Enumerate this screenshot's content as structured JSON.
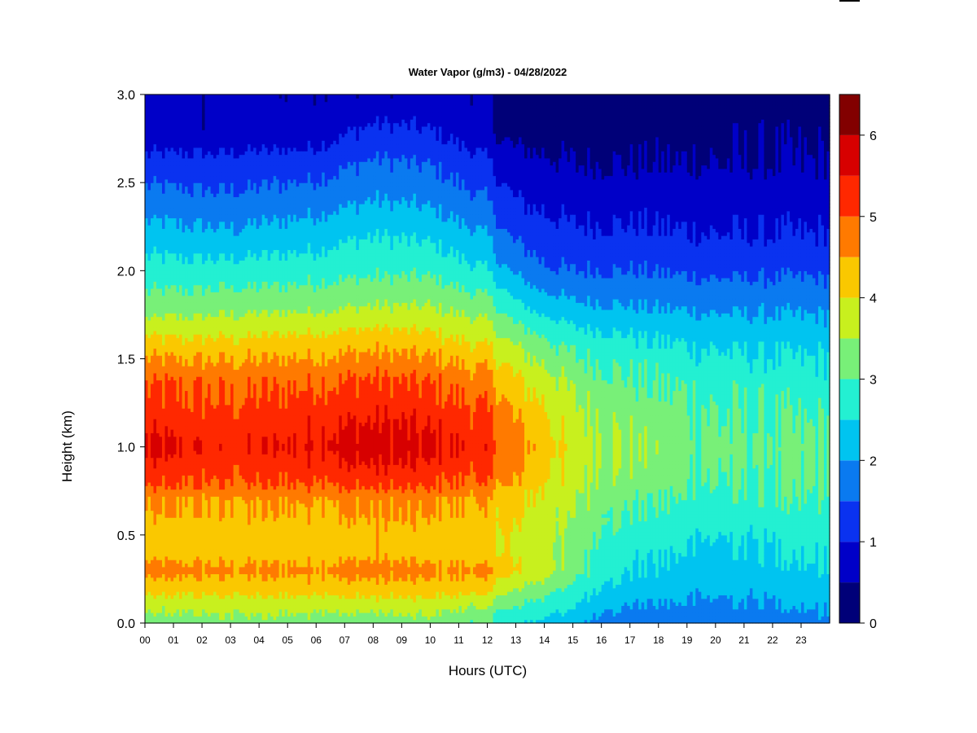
{
  "chart_data": {
    "type": "heatmap",
    "title": "Water Vapor (g/m3) - 04/28/2022",
    "xlabel": "Hours (UTC)",
    "ylabel": "Height (km)",
    "xlim": [
      0,
      24
    ],
    "ylim": [
      0,
      3
    ],
    "x_ticks": [
      "00",
      "01",
      "02",
      "03",
      "04",
      "05",
      "06",
      "07",
      "08",
      "09",
      "10",
      "11",
      "12",
      "13",
      "14",
      "15",
      "16",
      "17",
      "18",
      "19",
      "20",
      "21",
      "22",
      "23"
    ],
    "y_ticks": [
      "0.0",
      "0.5",
      "1.0",
      "1.5",
      "2.0",
      "2.5",
      "3.0"
    ],
    "colorbar": {
      "levels": [
        0,
        0.5,
        1,
        1.5,
        2,
        2.5,
        3,
        3.5,
        4,
        4.5,
        5,
        5.5,
        6,
        6.5
      ],
      "tick_labels": [
        "0",
        "1",
        "2",
        "3",
        "4",
        "5",
        "6"
      ],
      "colors": [
        "#000078",
        "#0000C8",
        "#0A32F0",
        "#0A7AF0",
        "#00C4F0",
        "#23F0D2",
        "#78F078",
        "#C8F01E",
        "#FAC800",
        "#FF7A00",
        "#FF2800",
        "#D70000",
        "#820000"
      ]
    },
    "profiles": {
      "heights_km": [
        0.0,
        0.1,
        0.2,
        0.3,
        0.4,
        0.5,
        0.7,
        0.8,
        1.0,
        1.2,
        1.4,
        1.6,
        1.8,
        2.0,
        2.2,
        2.4,
        2.6,
        2.8,
        3.0
      ],
      "hours": [
        0,
        3,
        6,
        8,
        10,
        12,
        12.5,
        13,
        14,
        15,
        17,
        20,
        23,
        24
      ],
      "values": [
        [
          3.2,
          3.6,
          4.2,
          4.7,
          4.3,
          4.3,
          4.5,
          5.1,
          5.6,
          5.2,
          4.9,
          4.1,
          3.2,
          2.7,
          2.2,
          1.7,
          1.2,
          0.6,
          0.6
        ],
        [
          3.3,
          3.7,
          4.2,
          4.6,
          4.3,
          4.3,
          4.5,
          5.0,
          5.3,
          5.1,
          4.8,
          4.1,
          3.3,
          2.7,
          2.1,
          1.6,
          1.2,
          0.6,
          0.6
        ],
        [
          3.3,
          3.7,
          4.3,
          4.6,
          4.3,
          4.3,
          4.6,
          5.1,
          5.6,
          5.3,
          4.9,
          4.2,
          3.4,
          2.8,
          2.3,
          1.8,
          1.3,
          0.7,
          0.6
        ],
        [
          3.2,
          3.7,
          4.3,
          4.7,
          4.4,
          4.4,
          4.6,
          5.2,
          5.8,
          5.4,
          5.0,
          4.3,
          3.5,
          2.9,
          2.5,
          2.0,
          1.6,
          1.1,
          0.6
        ],
        [
          3.3,
          3.7,
          4.3,
          4.6,
          4.3,
          4.3,
          4.6,
          5.1,
          5.6,
          5.3,
          4.9,
          4.2,
          3.5,
          2.9,
          2.4,
          1.9,
          1.5,
          1.0,
          0.6
        ],
        [
          3.0,
          3.5,
          4.2,
          4.6,
          4.2,
          4.2,
          4.4,
          4.9,
          5.3,
          5.0,
          4.6,
          3.9,
          3.2,
          2.5,
          2.0,
          1.5,
          1.1,
          0.6,
          0.6
        ],
        [
          2.6,
          3.1,
          3.7,
          4.2,
          4.0,
          4.0,
          4.2,
          4.6,
          5.0,
          4.7,
          4.3,
          3.6,
          2.9,
          2.1,
          1.6,
          1.2,
          0.8,
          0.4,
          0.3
        ],
        [
          2.6,
          3.0,
          3.5,
          4.0,
          3.9,
          3.9,
          4.1,
          4.4,
          4.7,
          4.4,
          4.0,
          3.4,
          2.6,
          1.9,
          1.4,
          1.0,
          0.7,
          0.3,
          0.3
        ],
        [
          2.4,
          2.8,
          3.3,
          3.8,
          3.7,
          3.7,
          3.9,
          4.1,
          4.3,
          4.1,
          3.7,
          3.1,
          2.3,
          1.6,
          1.2,
          0.9,
          0.6,
          0.3,
          0.3
        ],
        [
          2.1,
          2.5,
          2.8,
          3.2,
          3.2,
          3.3,
          3.5,
          3.7,
          3.8,
          3.6,
          3.3,
          2.8,
          2.1,
          1.5,
          1.1,
          0.8,
          0.5,
          0.3,
          0.3
        ],
        [
          1.6,
          2.0,
          2.3,
          2.5,
          2.6,
          2.8,
          3.1,
          3.3,
          3.4,
          3.3,
          3.0,
          2.6,
          2.0,
          1.5,
          1.1,
          0.8,
          0.5,
          0.3,
          0.3
        ],
        [
          1.6,
          1.9,
          2.1,
          2.3,
          2.4,
          2.5,
          2.8,
          3.0,
          3.1,
          3.0,
          2.8,
          2.4,
          1.9,
          1.4,
          1.0,
          0.8,
          0.5,
          0.4,
          0.3
        ],
        [
          1.7,
          2.0,
          2.2,
          2.4,
          2.5,
          2.6,
          2.9,
          3.0,
          3.1,
          2.9,
          2.7,
          2.3,
          1.9,
          1.4,
          1.0,
          0.8,
          0.5,
          0.4,
          0.3
        ],
        [
          1.9,
          2.1,
          2.3,
          2.5,
          2.6,
          2.7,
          2.9,
          3.0,
          3.1,
          2.9,
          2.7,
          2.3,
          1.9,
          1.4,
          1.0,
          0.8,
          0.5,
          0.4,
          0.3
        ]
      ]
    }
  }
}
